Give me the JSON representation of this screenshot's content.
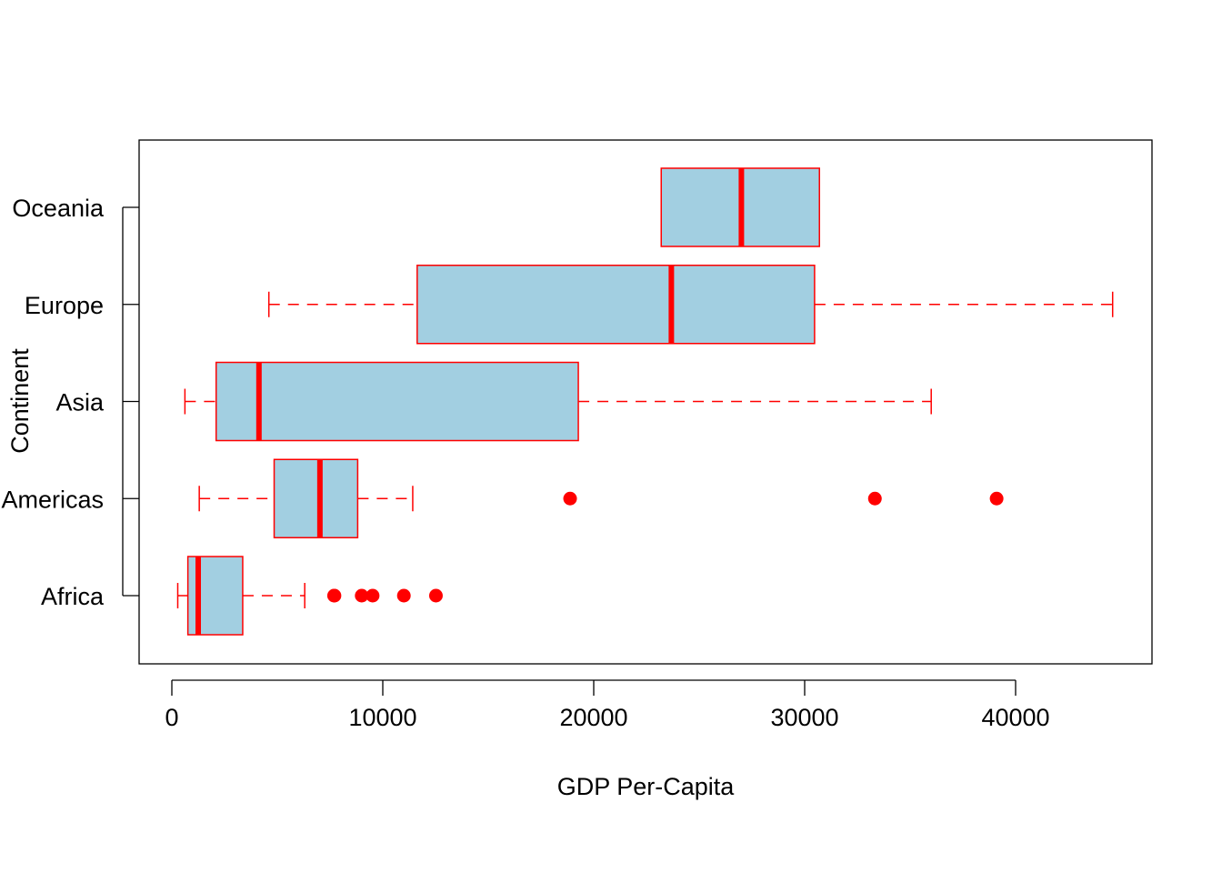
{
  "chart_data": {
    "type": "boxplot",
    "orientation": "horizontal",
    "title": "",
    "xlabel": "GDP Per-Capita",
    "ylabel": "Continent",
    "xlim": [
      -1500,
      46500
    ],
    "x_ticks": [
      0,
      10000,
      20000,
      30000,
      40000
    ],
    "x_tick_labels": [
      "0",
      "10000",
      "20000",
      "30000",
      "40000"
    ],
    "grid": false,
    "legend": "none",
    "colors": {
      "box_fill": "#a2cfe1",
      "stroke": "#ff0000",
      "outlier": "#ff0000",
      "axis": "#000000"
    },
    "categories": [
      "Africa",
      "Americas",
      "Asia",
      "Europe",
      "Oceania"
    ],
    "boxes": [
      {
        "label": "Africa",
        "whisker_low": 280,
        "q1": 760,
        "median": 1250,
        "q3": 3360,
        "whisker_high": 6300,
        "outliers": [
          7690,
          7710,
          9000,
          9520,
          11000,
          12520
        ]
      },
      {
        "label": "Americas",
        "whisker_low": 1300,
        "q1": 4850,
        "median": 7020,
        "q3": 8810,
        "whisker_high": 11420,
        "outliers": [
          18880,
          33330,
          39100
        ]
      },
      {
        "label": "Asia",
        "whisker_low": 620,
        "q1": 2100,
        "median": 4130,
        "q3": 19270,
        "whisker_high": 36000,
        "outliers": []
      },
      {
        "label": "Europe",
        "whisker_low": 4600,
        "q1": 11630,
        "median": 23680,
        "q3": 30470,
        "whisker_high": 44600,
        "outliers": []
      },
      {
        "label": "Oceania",
        "whisker_low": 23200,
        "q1": 23200,
        "median": 27000,
        "q3": 30700,
        "whisker_high": 30700,
        "outliers": []
      }
    ]
  }
}
